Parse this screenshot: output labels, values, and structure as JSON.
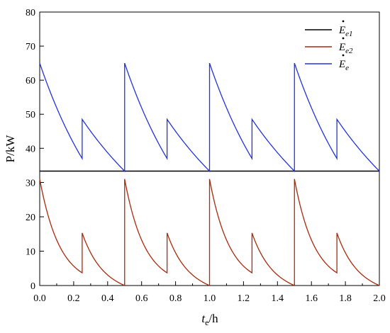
{
  "chart_data": {
    "type": "line",
    "xlabel": "t_e/h",
    "xlabel_main": "t",
    "xlabel_sub": "e",
    "xlabel_unit": "/h",
    "ylabel": "P/kW",
    "xlim": [
      0,
      2.0
    ],
    "x_ticks": [
      "0.0",
      "0.2",
      "0.4",
      "0.6",
      "0.8",
      "1.0",
      "1.2",
      "1.4",
      "1.6",
      "1.8",
      "2.0"
    ],
    "x_tick_values": [
      0.0,
      0.2,
      0.4,
      0.6,
      0.8,
      1.0,
      1.2,
      1.4,
      1.6,
      1.8,
      2.0
    ],
    "panels": [
      {
        "id": "top",
        "ylim": [
          33.3,
          80
        ],
        "y_ticks": [
          "40",
          "50",
          "60",
          "70",
          "80"
        ],
        "y_tick_values": [
          40,
          50,
          60,
          70,
          80
        ],
        "series": [
          {
            "name": "Ė_e",
            "color": "#2233dd",
            "shape": "periodic-decay",
            "period": 0.5,
            "segments": [
              {
                "start": 0.0,
                "end": 0.25,
                "y_start": 65.0,
                "y_end": 37.0
              },
              {
                "start": 0.25,
                "end": 0.5,
                "y_start": 48.5,
                "y_end": 33.3
              }
            ]
          }
        ]
      },
      {
        "id": "bottom",
        "ylim": [
          0,
          33.3
        ],
        "y_ticks": [
          "0",
          "10",
          "20",
          "30"
        ],
        "y_tick_values": [
          0,
          10,
          20,
          30
        ],
        "series": [
          {
            "name": "Ė_e2",
            "color": "#aa2a0c",
            "shape": "periodic-decay",
            "period": 0.5,
            "segments": [
              {
                "start": 0.0,
                "end": 0.25,
                "y_start": 31.0,
                "y_end": 3.7
              },
              {
                "start": 0.25,
                "end": 0.5,
                "y_start": 15.3,
                "y_end": 0.0
              }
            ]
          }
        ]
      }
    ],
    "legend": {
      "placement": "top-right",
      "entries": [
        {
          "label_main": "E",
          "label_sub": "e1",
          "color": "#000000"
        },
        {
          "label_main": "E",
          "label_sub": "e2",
          "color": "#aa2a0c"
        },
        {
          "label_main": "E",
          "label_sub": "e",
          "color": "#2233dd"
        }
      ]
    },
    "panel_divider_color": "#000000"
  }
}
